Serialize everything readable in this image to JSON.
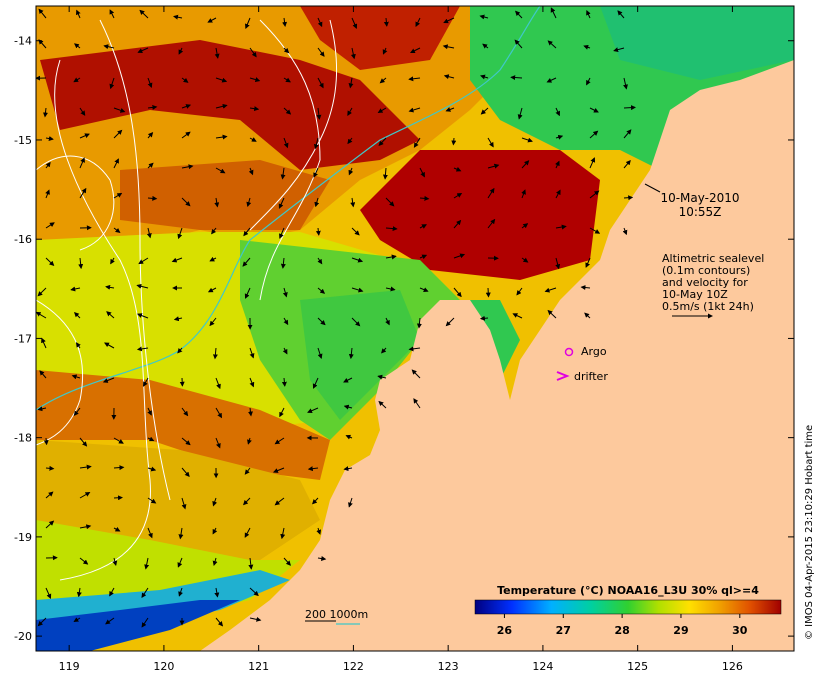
{
  "map": {
    "lon_range": [
      118.65,
      126.65
    ],
    "lat_range": [
      -20.15,
      -13.65
    ],
    "lon_ticks": [
      "119",
      "120",
      "121",
      "122",
      "123",
      "124",
      "125",
      "126"
    ],
    "lat_ticks": [
      "-14",
      "-15",
      "-16",
      "-17",
      "-18",
      "-19",
      "-20"
    ],
    "land_color": "#fdc99d"
  },
  "annotations": {
    "date": "10-May-2010",
    "time": "10:55Z",
    "altimetry_line1": "Altimetric sealevel",
    "altimetry_line2": "(0.1m contours)",
    "altimetry_line3": "and velocity for",
    "altimetry_line4": "10-May 10Z",
    "altimetry_line5": "0.5m/s (1kt 24h)",
    "argo_label": "Argo",
    "drifter_label": "drifter",
    "depth_label": "200  1000m"
  },
  "colorbar": {
    "title": "Temperature (°C) NOAA16_L3U 30% ql>=4",
    "ticks": [
      "26",
      "27",
      "28",
      "29",
      "30"
    ],
    "min": 25.5,
    "max": 30.7
  },
  "credit": "© IMOS 04-Apr-2015 23:10:29 Hobart time",
  "colors": {
    "argo": "#e000e0",
    "drifter": "#e000e0",
    "isobath_200": "#40c8c8",
    "sealevel_contour": "#ffffff"
  }
}
